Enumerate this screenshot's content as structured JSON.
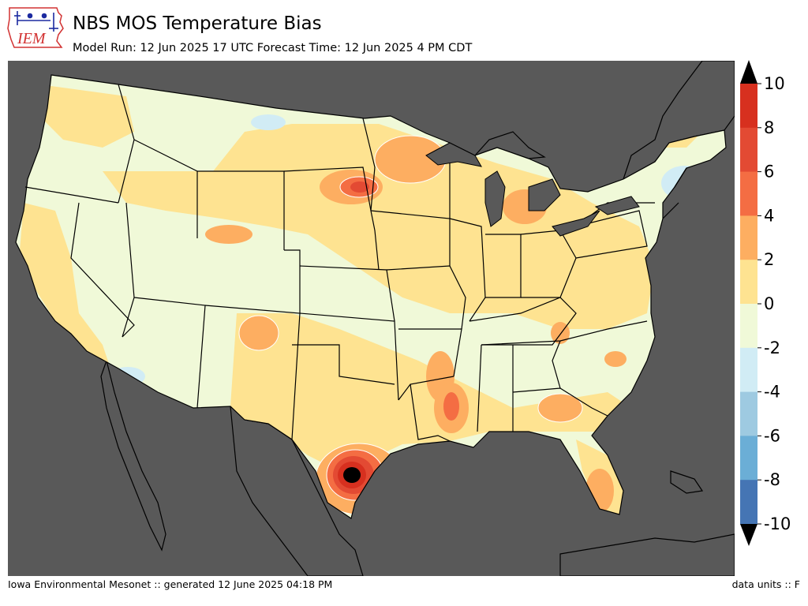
{
  "header": {
    "logo_text": "IEM",
    "title": "NBS MOS Temperature Bias",
    "subtitle": "Model Run: 12 Jun 2025 17 UTC Forecast Time: 12 Jun 2025 4 PM CDT"
  },
  "footer": {
    "left": "Iowa Environmental Mesonet :: generated 12 June 2025 04:18 PM",
    "right": "data units :: F"
  },
  "colors": {
    "background_nonland": "#595959",
    "land_neutral_pos": "#fff2b0",
    "land_neutral_neg": "#eff8d9",
    "borders": "#000000"
  },
  "colorbar": {
    "ticks": [
      "10",
      "8",
      "6",
      "4",
      "2",
      "0",
      "-2",
      "-4",
      "-6",
      "-8",
      "-10"
    ],
    "bins": [
      {
        "range": "8 to 10",
        "color": "#d7301f"
      },
      {
        "range": "6 to 8",
        "color": "#e34a33"
      },
      {
        "range": "4 to 6",
        "color": "#f46d43"
      },
      {
        "range": "2 to 4",
        "color": "#fdae61"
      },
      {
        "range": "0 to 2",
        "color": "#fee391"
      },
      {
        "range": "-2 to 0",
        "color": "#f0f9d8"
      },
      {
        "range": "-4 to -2",
        "color": "#d1ecf5"
      },
      {
        "range": "-6 to -4",
        "color": "#9ecae1"
      },
      {
        "range": "-8 to -6",
        "color": "#6baed6"
      },
      {
        "range": "-10 to -8",
        "color": "#4575b4"
      }
    ],
    "over_color": "#000000",
    "under_color": "#000000"
  }
}
